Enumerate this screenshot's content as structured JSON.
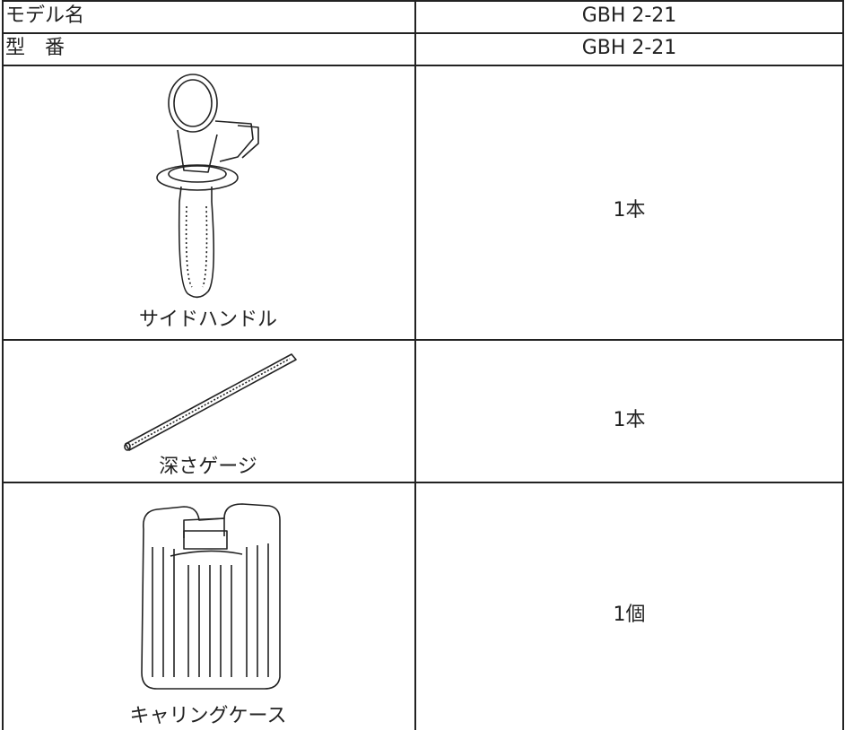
{
  "table": {
    "rows": [
      {
        "label": "モデル名",
        "value": "GBH 2-21"
      },
      {
        "label": "型　番",
        "value": "GBH 2-21"
      },
      {
        "caption": "サイドハンドル",
        "value": "1本"
      },
      {
        "caption": "深さゲージ",
        "value": "1本"
      },
      {
        "caption": "キャリングケース",
        "value": "1個"
      }
    ]
  }
}
